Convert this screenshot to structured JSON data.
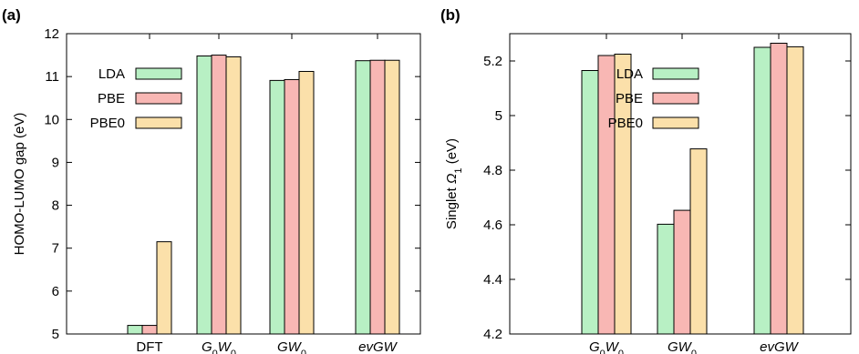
{
  "colors": {
    "LDA": "#b8f0c4",
    "PBE": "#f8b7b4",
    "PBE0": "#fbe0aa",
    "stroke": "#000000"
  },
  "chart_data": [
    {
      "type": "bar",
      "panel_label": "(a)",
      "ylabel": "HOMO-LUMO gap (eV)",
      "ylim": [
        5,
        12
      ],
      "yticks": [
        5,
        6,
        7,
        8,
        9,
        10,
        11,
        12
      ],
      "categories": [
        {
          "base": "DFT",
          "parts": [
            {
              "t": "DFT",
              "it": false,
              "sub": false
            }
          ]
        },
        {
          "base": "G0W0",
          "parts": [
            {
              "t": "G",
              "it": true,
              "sub": false
            },
            {
              "t": "0",
              "it": false,
              "sub": true
            },
            {
              "t": "W",
              "it": true,
              "sub": false
            },
            {
              "t": "0",
              "it": false,
              "sub": true
            }
          ]
        },
        {
          "base": "GW0",
          "parts": [
            {
              "t": "GW",
              "it": true,
              "sub": false
            },
            {
              "t": "0",
              "it": false,
              "sub": true
            }
          ]
        },
        {
          "base": "evGW",
          "parts": [
            {
              "t": "evGW",
              "it": true,
              "sub": false
            }
          ]
        }
      ],
      "series": [
        {
          "name": "LDA",
          "values": [
            5.2,
            11.48,
            10.91,
            11.37
          ]
        },
        {
          "name": "PBE",
          "values": [
            5.2,
            11.5,
            10.93,
            11.38
          ]
        },
        {
          "name": "PBE0",
          "values": [
            7.15,
            11.46,
            11.12,
            11.38
          ]
        }
      ],
      "legend_position": "upper-left"
    },
    {
      "type": "bar",
      "panel_label": "(b)",
      "ylabel_prefix": "Singlet ",
      "ylabel_symbol": "Ω",
      "ylabel_sub": "1",
      "ylabel_suffix": " (eV)",
      "ylim": [
        4.2,
        5.3
      ],
      "yticks": [
        4.2,
        4.4,
        4.6,
        4.8,
        5,
        5.2
      ],
      "categories": [
        {
          "base": "G0W0",
          "parts": [
            {
              "t": "G",
              "it": true,
              "sub": false
            },
            {
              "t": "0",
              "it": false,
              "sub": true
            },
            {
              "t": "W",
              "it": true,
              "sub": false
            },
            {
              "t": "0",
              "it": false,
              "sub": true
            }
          ]
        },
        {
          "base": "GW0",
          "parts": [
            {
              "t": "GW",
              "it": true,
              "sub": false
            },
            {
              "t": "0",
              "it": false,
              "sub": true
            }
          ]
        },
        {
          "base": "evGW",
          "parts": [
            {
              "t": "evGW",
              "it": true,
              "sub": false
            }
          ]
        }
      ],
      "series": [
        {
          "name": "LDA",
          "values": [
            5.165,
            4.602,
            5.25
          ]
        },
        {
          "name": "PBE",
          "values": [
            5.22,
            4.653,
            5.265
          ]
        },
        {
          "name": "PBE0",
          "values": [
            5.225,
            4.878,
            5.252
          ]
        }
      ],
      "legend_position": "upper-center"
    }
  ]
}
